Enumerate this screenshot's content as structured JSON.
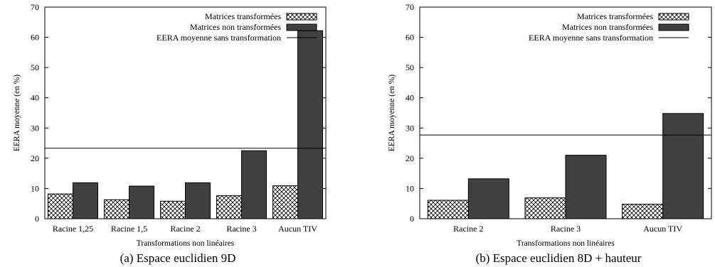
{
  "chart_data": [
    {
      "type": "bar",
      "title": "",
      "caption": "(a) Espace euclidien 9D",
      "xlabel": "Transformations non linéaires",
      "ylabel": "EERA moyenne (en %)",
      "ylim": [
        0,
        70
      ],
      "yticks": [
        "0",
        "10",
        "20",
        "30",
        "40",
        "50",
        "60",
        "70"
      ],
      "categories": [
        "Racine 1,25",
        "Racine 1,5",
        "Racine 2",
        "Racine 3",
        "Aucun TIV"
      ],
      "series": [
        {
          "name": "Matrices transformées",
          "values": [
            8.2,
            6.3,
            5.8,
            7.6,
            10.9
          ],
          "pattern": "crosshatch"
        },
        {
          "name": "Matrices non transformées",
          "values": [
            11.9,
            10.8,
            11.9,
            22.5,
            62.2
          ],
          "color": "#404040"
        }
      ],
      "reference_line": {
        "name": "EERA moyenne sans transformation",
        "value": 23.3
      },
      "legend_position": "top-right",
      "grid": false
    },
    {
      "type": "bar",
      "title": "",
      "caption": "(b) Espace euclidien 8D + hauteur",
      "xlabel": "Transformations non linéaires",
      "ylabel": "EERA moyenne (en %)",
      "ylim": [
        0,
        70
      ],
      "yticks": [
        "0",
        "10",
        "20",
        "30",
        "40",
        "50",
        "60",
        "70"
      ],
      "categories": [
        "Racine 2",
        "Racine 3",
        "Aucun TIV"
      ],
      "series": [
        {
          "name": "Matrices transformées",
          "values": [
            6.1,
            6.9,
            4.8
          ],
          "pattern": "crosshatch"
        },
        {
          "name": "Matrices non transformées",
          "values": [
            13.2,
            21.0,
            34.8
          ],
          "color": "#404040"
        }
      ],
      "reference_line": {
        "name": "EERA moyenne sans transformation",
        "value": 27.7
      },
      "legend_position": "top-right",
      "grid": false
    }
  ]
}
